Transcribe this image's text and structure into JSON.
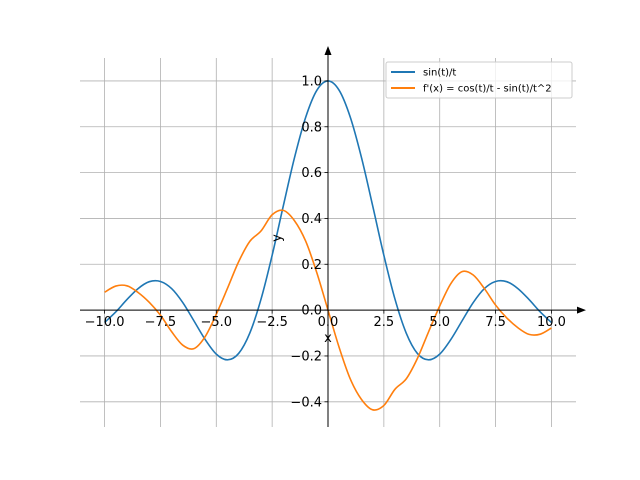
{
  "chart_data": {
    "type": "line",
    "title": "",
    "xlabel": "x",
    "ylabel": "y",
    "xlim": [
      -11.1,
      11.1
    ],
    "ylim": [
      -0.51,
      1.1
    ],
    "grid": true,
    "legend_position": "top-right",
    "x_ticks": [
      -10.0,
      -7.5,
      -5.0,
      -2.5,
      0.0,
      2.5,
      5.0,
      7.5,
      10.0
    ],
    "x_tick_labels": [
      "−10.0",
      "−7.5",
      "−5.0",
      "−2.5",
      "0.0",
      "2.5",
      "5.0",
      "7.5",
      "10.0"
    ],
    "y_ticks": [
      -0.4,
      -0.2,
      0.0,
      0.2,
      0.4,
      0.6,
      0.8,
      1.0
    ],
    "y_tick_labels": [
      "−0.4",
      "−0.2",
      "0.0",
      "0.2",
      "0.4",
      "0.6",
      "0.8",
      "1.0"
    ],
    "x": [
      -10,
      -9.5,
      -9,
      -8.5,
      -8,
      -7.5,
      -7,
      -6.5,
      -6,
      -5.5,
      -5,
      -4.5,
      -4,
      -3.5,
      -3,
      -2.5,
      -2,
      -1.5,
      -1,
      -0.5,
      0,
      0.5,
      1,
      1.5,
      2,
      2.5,
      3,
      3.5,
      4,
      4.5,
      5,
      5.5,
      6,
      6.5,
      7,
      7.5,
      8,
      8.5,
      9,
      9.5,
      10
    ],
    "series": [
      {
        "name": "sin(t)/t",
        "color": "#1f77b4",
        "values": [
          -0.054,
          -0.008,
          0.046,
          0.094,
          0.124,
          0.125,
          0.094,
          0.033,
          -0.047,
          -0.128,
          -0.192,
          -0.217,
          -0.189,
          -0.1,
          0.047,
          0.239,
          0.455,
          0.665,
          0.841,
          0.959,
          1.0,
          0.959,
          0.841,
          0.665,
          0.455,
          0.239,
          0.047,
          -0.1,
          -0.189,
          -0.217,
          -0.192,
          -0.128,
          -0.047,
          0.033,
          0.094,
          0.125,
          0.124,
          0.094,
          0.046,
          -0.008,
          -0.054
        ]
      },
      {
        "name": "f'(x) = cos(t)/t - sin(t)/t^2",
        "color": "#ff7f0e",
        "values": [
          0.078,
          0.105,
          0.106,
          0.077,
          0.034,
          -0.022,
          -0.094,
          -0.153,
          -0.168,
          -0.116,
          -0.018,
          0.095,
          0.211,
          0.3,
          0.345,
          0.416,
          0.435,
          0.39,
          0.301,
          0.163,
          0.0,
          -0.163,
          -0.301,
          -0.39,
          -0.435,
          -0.416,
          -0.345,
          -0.3,
          -0.211,
          -0.095,
          0.018,
          0.116,
          0.168,
          0.153,
          0.094,
          0.022,
          -0.034,
          -0.077,
          -0.106,
          -0.105,
          -0.078
        ]
      }
    ]
  }
}
